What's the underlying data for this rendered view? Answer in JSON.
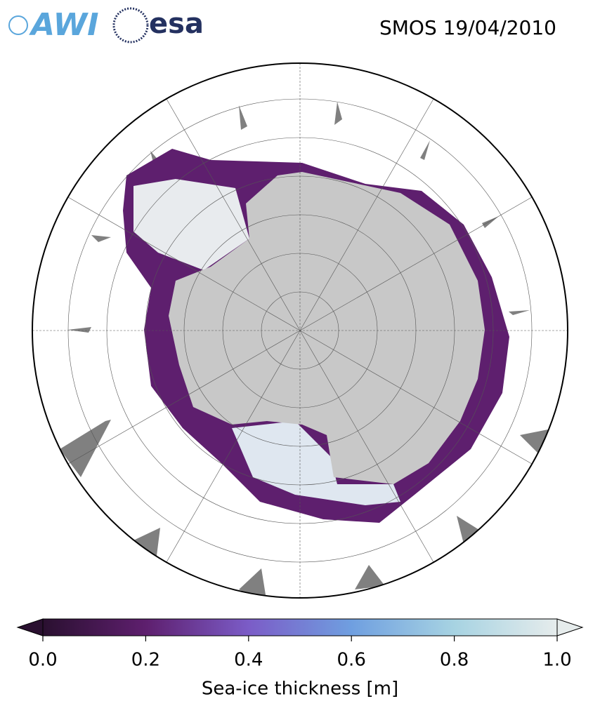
{
  "logos": {
    "awi": "AWI",
    "esa": "esa"
  },
  "title": "SMOS 19/04/2010",
  "colorbar": {
    "label": "Sea-ice thickness [m]",
    "lim": [
      0,
      1
    ],
    "ticks": [
      {
        "value": 0,
        "label": "0.0"
      },
      0.2,
      0.4,
      0.6,
      0.8,
      {
        "value": 1,
        "label": "1.0"
      }
    ],
    "colors": [
      "#2a1030",
      "#5e1f6e",
      "#7b5cc7",
      "#6f9fe0",
      "#a7d3e2",
      "#e6ecec"
    ]
  }
}
